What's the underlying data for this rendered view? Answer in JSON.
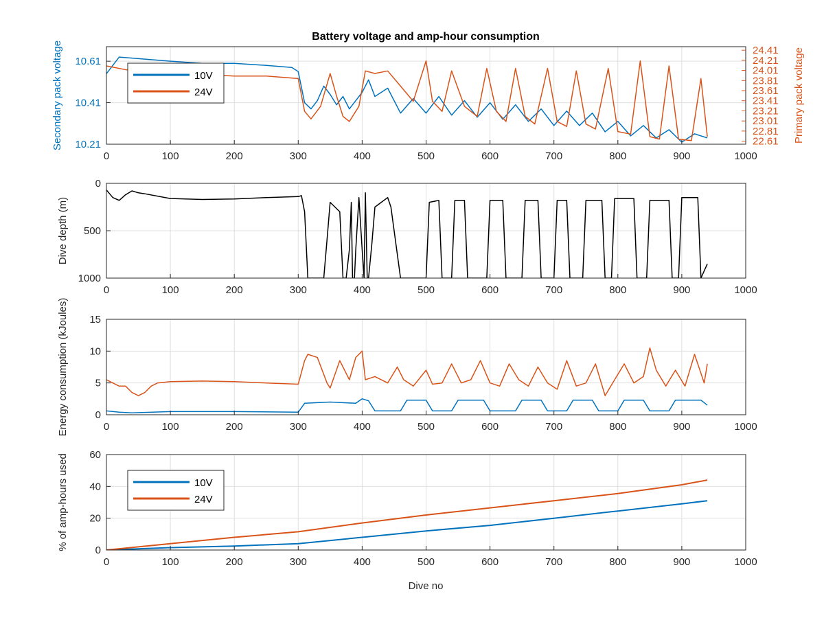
{
  "figure": {
    "title": "Battery voltage and amp-hour consumption",
    "xlabel": "Dive no"
  },
  "colors": {
    "series_10v": "#0072bd",
    "series_24v": "#d95319",
    "depth": "#000000",
    "axis": "#262626",
    "grid": "#dfdfdf"
  },
  "chart_data": [
    {
      "type": "line",
      "xlim": [
        0,
        1000
      ],
      "xticks": [
        "0",
        "100",
        "200",
        "300",
        "400",
        "500",
        "600",
        "700",
        "800",
        "900",
        "1000"
      ],
      "ylabel": "Secondary pack voltage",
      "ylim": [
        10.21,
        10.68
      ],
      "yticks": [
        "10.21",
        "10.41",
        "10.61"
      ],
      "ylabel_right": "Primary pack voltage",
      "ylim_right": [
        22.55,
        24.48
      ],
      "yticks_right": [
        "22.61",
        "22.81",
        "23.01",
        "23.21",
        "23.41",
        "23.61",
        "23.81",
        "24.01",
        "24.21",
        "24.41"
      ],
      "grid": true,
      "legend": {
        "position": "top-left",
        "entries": [
          "10V",
          "24V"
        ]
      },
      "series": [
        {
          "name": "10V",
          "axis": "left",
          "x": [
            0,
            20,
            60,
            100,
            150,
            200,
            250,
            290,
            300,
            310,
            320,
            330,
            340,
            350,
            360,
            370,
            380,
            390,
            400,
            410,
            420,
            440,
            460,
            480,
            500,
            520,
            540,
            560,
            580,
            600,
            620,
            640,
            660,
            680,
            700,
            720,
            740,
            760,
            780,
            800,
            820,
            840,
            860,
            880,
            900,
            920,
            940
          ],
          "y": [
            10.55,
            10.63,
            10.62,
            10.61,
            10.6,
            10.6,
            10.59,
            10.58,
            10.56,
            10.41,
            10.38,
            10.42,
            10.49,
            10.45,
            10.4,
            10.44,
            10.38,
            10.42,
            10.46,
            10.52,
            10.44,
            10.48,
            10.36,
            10.43,
            10.36,
            10.44,
            10.35,
            10.42,
            10.34,
            10.41,
            10.33,
            10.4,
            10.32,
            10.38,
            10.3,
            10.37,
            10.3,
            10.36,
            10.27,
            10.32,
            10.25,
            10.3,
            10.24,
            10.28,
            10.22,
            10.26,
            10.24
          ]
        },
        {
          "name": "24V",
          "axis": "right",
          "x": [
            0,
            40,
            100,
            150,
            200,
            250,
            300,
            310,
            320,
            335,
            350,
            360,
            370,
            380,
            395,
            405,
            420,
            440,
            460,
            480,
            500,
            510,
            525,
            540,
            560,
            580,
            595,
            610,
            625,
            640,
            655,
            670,
            690,
            705,
            720,
            735,
            750,
            765,
            785,
            800,
            820,
            835,
            850,
            865,
            880,
            895,
            915,
            930,
            940
          ],
          "y": [
            24.1,
            24.0,
            23.95,
            23.93,
            23.9,
            23.9,
            23.85,
            23.2,
            23.05,
            23.3,
            23.95,
            23.5,
            23.1,
            23.0,
            23.3,
            24.0,
            23.95,
            24.0,
            23.7,
            23.4,
            24.2,
            23.4,
            23.2,
            24.0,
            23.3,
            23.1,
            24.05,
            23.2,
            23.0,
            24.05,
            23.1,
            22.95,
            24.05,
            23.0,
            22.9,
            24.0,
            22.95,
            22.85,
            24.05,
            22.8,
            22.75,
            24.2,
            22.7,
            22.65,
            24.1,
            22.65,
            22.62,
            23.85,
            22.7
          ]
        }
      ]
    },
    {
      "type": "line",
      "xlim": [
        0,
        1000
      ],
      "xticks": [
        "0",
        "100",
        "200",
        "300",
        "400",
        "500",
        "600",
        "700",
        "800",
        "900",
        "1000"
      ],
      "ylabel": "Dive depth (m)",
      "ylim": [
        0,
        1000
      ],
      "y_reversed": true,
      "yticks": [
        "0",
        "500",
        "1000"
      ],
      "grid": true,
      "series": [
        {
          "name": "",
          "x": [
            0,
            10,
            20,
            30,
            40,
            50,
            60,
            100,
            150,
            200,
            250,
            300,
            305,
            310,
            315,
            340,
            345,
            350,
            365,
            370,
            375,
            380,
            383,
            385,
            388,
            390,
            395,
            400,
            403,
            405,
            408,
            410,
            415,
            420,
            430,
            440,
            445,
            460,
            465,
            500,
            505,
            520,
            525,
            540,
            545,
            560,
            565,
            595,
            600,
            620,
            625,
            650,
            655,
            675,
            680,
            700,
            705,
            720,
            725,
            745,
            750,
            775,
            780,
            790,
            795,
            825,
            830,
            845,
            850,
            880,
            885,
            895,
            900,
            925,
            930,
            940
          ],
          "y": [
            70,
            150,
            180,
            120,
            80,
            100,
            110,
            160,
            170,
            165,
            150,
            140,
            130,
            300,
            1000,
            1000,
            600,
            200,
            300,
            1000,
            1000,
            700,
            200,
            1000,
            1000,
            700,
            150,
            700,
            1000,
            100,
            1000,
            1000,
            650,
            250,
            200,
            150,
            250,
            1000,
            1000,
            1000,
            200,
            180,
            1000,
            1000,
            180,
            180,
            1000,
            1000,
            180,
            180,
            1000,
            1000,
            180,
            180,
            1000,
            1000,
            180,
            180,
            1000,
            1000,
            180,
            180,
            1000,
            1000,
            160,
            160,
            1000,
            1000,
            180,
            180,
            1000,
            1000,
            150,
            150,
            1000,
            850
          ]
        }
      ]
    },
    {
      "type": "line",
      "xlim": [
        0,
        1000
      ],
      "xticks": [
        "0",
        "100",
        "200",
        "300",
        "400",
        "500",
        "600",
        "700",
        "800",
        "900",
        "1000"
      ],
      "ylabel": "Energy consumption (kJoules)",
      "ylim": [
        0,
        15
      ],
      "yticks": [
        "0",
        "5",
        "10",
        "15"
      ],
      "grid": true,
      "series": [
        {
          "name": "24V",
          "x": [
            0,
            10,
            20,
            30,
            40,
            50,
            60,
            70,
            80,
            100,
            150,
            200,
            250,
            300,
            310,
            315,
            330,
            345,
            350,
            365,
            380,
            390,
            400,
            405,
            420,
            440,
            455,
            465,
            480,
            500,
            510,
            525,
            540,
            555,
            570,
            585,
            600,
            615,
            630,
            645,
            660,
            675,
            690,
            705,
            720,
            735,
            750,
            765,
            780,
            795,
            810,
            825,
            840,
            850,
            860,
            875,
            890,
            905,
            920,
            935,
            940
          ],
          "y": [
            5.5,
            5.0,
            4.5,
            4.5,
            3.5,
            3.0,
            3.5,
            4.5,
            5.0,
            5.2,
            5.3,
            5.2,
            5.0,
            4.8,
            8.5,
            9.5,
            9.0,
            5.0,
            4.2,
            8.5,
            5.5,
            9.0,
            10.0,
            5.5,
            6.0,
            5.0,
            7.5,
            5.5,
            4.5,
            7.0,
            4.8,
            5.0,
            8.0,
            5.0,
            5.5,
            8.5,
            5.0,
            4.5,
            8.0,
            5.5,
            4.5,
            7.5,
            5.0,
            4.0,
            8.5,
            4.5,
            5.0,
            8.0,
            3.0,
            5.5,
            8.0,
            5.0,
            6.0,
            10.5,
            7.0,
            4.5,
            7.0,
            4.5,
            9.5,
            5.0,
            8.0
          ]
        },
        {
          "name": "10V",
          "x": [
            0,
            20,
            40,
            100,
            200,
            300,
            310,
            350,
            390,
            400,
            410,
            420,
            460,
            470,
            500,
            510,
            540,
            550,
            590,
            600,
            640,
            650,
            680,
            690,
            720,
            730,
            760,
            770,
            800,
            810,
            840,
            850,
            880,
            890,
            930,
            940
          ],
          "y": [
            0.6,
            0.4,
            0.3,
            0.5,
            0.5,
            0.4,
            1.8,
            2.0,
            1.8,
            2.5,
            2.2,
            0.6,
            0.6,
            2.3,
            2.3,
            0.6,
            0.6,
            2.3,
            2.3,
            0.6,
            0.6,
            2.3,
            2.3,
            0.6,
            0.6,
            2.3,
            2.3,
            0.6,
            0.6,
            2.3,
            2.3,
            0.6,
            0.6,
            2.3,
            2.3,
            1.5
          ]
        }
      ]
    },
    {
      "type": "line",
      "xlim": [
        0,
        1000
      ],
      "xticks": [
        "0",
        "100",
        "200",
        "300",
        "400",
        "500",
        "600",
        "700",
        "800",
        "900",
        "1000"
      ],
      "ylabel": "% of amp-hours used",
      "ylim": [
        0,
        60
      ],
      "yticks": [
        "0",
        "20",
        "40",
        "60"
      ],
      "grid": true,
      "legend": {
        "position": "top-left",
        "entries": [
          "10V",
          "24V"
        ]
      },
      "series": [
        {
          "name": "10V",
          "x": [
            0,
            100,
            200,
            300,
            400,
            500,
            600,
            700,
            800,
            900,
            940
          ],
          "y": [
            0,
            1.5,
            2.5,
            4,
            8,
            12,
            15.5,
            20,
            24.5,
            29,
            31
          ]
        },
        {
          "name": "24V",
          "x": [
            0,
            100,
            200,
            300,
            400,
            500,
            600,
            700,
            800,
            900,
            940
          ],
          "y": [
            0,
            4,
            8,
            11.5,
            17,
            22,
            26.5,
            31,
            35.5,
            41,
            44
          ]
        }
      ]
    }
  ]
}
